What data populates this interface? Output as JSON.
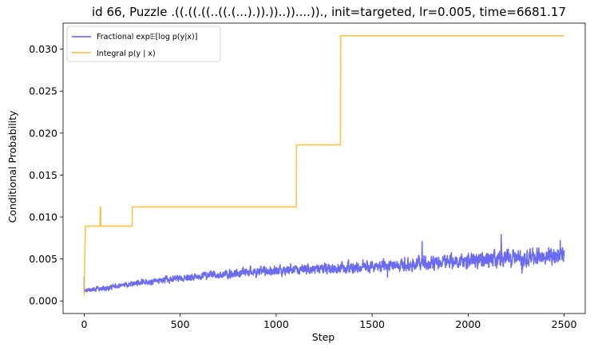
{
  "chart_data": {
    "type": "line",
    "title": "id 66, Puzzle .((.((.((..((.(...).)).))..))....))., init=targeted, lr=0.005, time=6681.17",
    "xlabel": "Step",
    "ylabel": "Conditional Probability",
    "xlim": [
      -110,
      2610
    ],
    "ylim": [
      -0.0015,
      0.0331
    ],
    "xticks": [
      0,
      500,
      1000,
      1500,
      2000,
      2500
    ],
    "xtick_labels": [
      "0",
      "500",
      "1000",
      "1500",
      "2000",
      "2500"
    ],
    "yticks": [
      0.0,
      0.005,
      0.01,
      0.015,
      0.02,
      0.025,
      0.03
    ],
    "ytick_labels": [
      "0.000",
      "0.005",
      "0.010",
      "0.015",
      "0.020",
      "0.025",
      "0.030"
    ],
    "grid": false,
    "legend_position": "top-left",
    "series": [
      {
        "name": "Fractional exp𝔼[log p(y|x)]",
        "color": "#5b5bf0",
        "style": "noisy",
        "start": [
          0,
          0.0029
        ],
        "trend_x": [
          0,
          20,
          100,
          300,
          600,
          1000,
          1500,
          2000,
          2500
        ],
        "trend_y": [
          0.0012,
          0.0013,
          0.0015,
          0.0022,
          0.003,
          0.0036,
          0.0041,
          0.0048,
          0.0054
        ],
        "noise_x": [
          0,
          200,
          600,
          1200,
          1800,
          2200,
          2500
        ],
        "noise_y": [
          0.0002,
          0.0003,
          0.00045,
          0.0006,
          0.0008,
          0.001,
          0.0011
        ],
        "spikes": [
          [
            2172,
            0.0079
          ],
          [
            1760,
            0.0071
          ],
          [
            2480,
            0.0072
          ],
          [
            1580,
            0.0028
          ],
          [
            2280,
            0.0033
          ]
        ]
      },
      {
        "name": "Integral p(y | x)",
        "color": "#fbb830",
        "style": "step",
        "x": [
          0,
          2,
          3,
          5,
          6,
          8,
          82,
          83,
          86,
          87,
          88,
          250,
          251,
          1105,
          1106,
          1335,
          1336,
          2500
        ],
        "y": [
          0.0006,
          0.004,
          0.0057,
          0.0075,
          0.0088,
          0.0089,
          0.0089,
          0.0112,
          0.0112,
          0.0092,
          0.0089,
          0.0089,
          0.0112,
          0.0112,
          0.0186,
          0.0186,
          0.0316,
          0.0316
        ]
      }
    ]
  }
}
